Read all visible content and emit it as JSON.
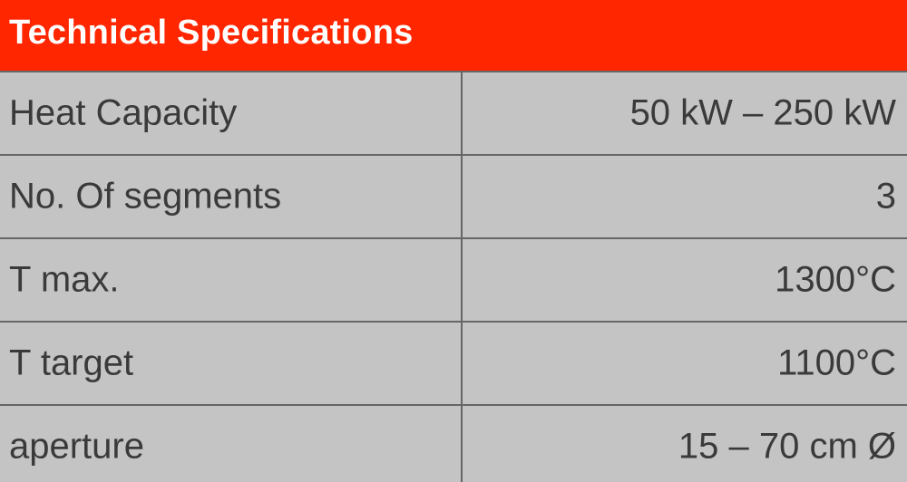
{
  "title": "Technical Specifications",
  "rows": [
    {
      "label": "Heat Capacity",
      "value": "50 kW – 250 kW"
    },
    {
      "label": "No. Of segments",
      "value": "3"
    },
    {
      "label": "T max.",
      "value": "1300°C"
    },
    {
      "label": "T target",
      "value": "1100°C"
    },
    {
      "label": "aperture",
      "value": "15 – 70 cm Ø"
    }
  ],
  "colors": {
    "header_background": "#ff2600",
    "header_text": "#ffffff",
    "row_background": "#c4c4c4",
    "text": "#3a3a3a",
    "grid": "#666666"
  }
}
